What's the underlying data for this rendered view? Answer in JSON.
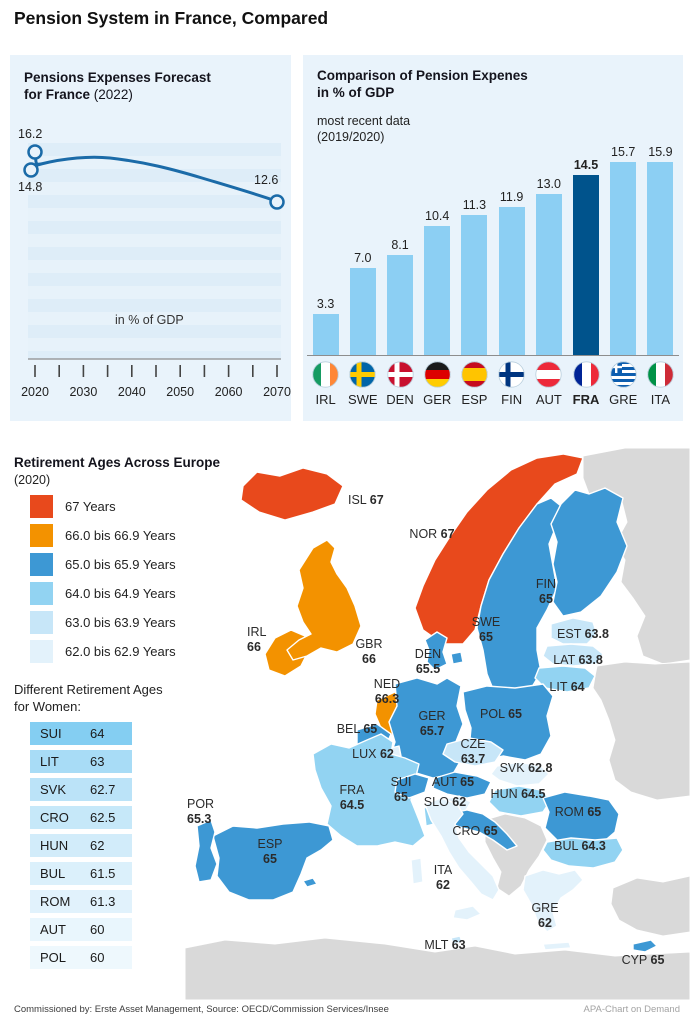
{
  "page_title": "Pension System in France, Compared",
  "colors": {
    "panel_bg": "#e9f3fb",
    "line": "#1b6ba8",
    "bar_light": "#8ccff3",
    "bar_dark": "#00538c",
    "map_nodata": "#d9d9d9",
    "bands": {
      "67": "#e8491c",
      "66": "#f39200",
      "65": "#3d98d4",
      "64": "#92d3f2",
      "63": "#c7e6f8",
      "62": "#e3f2fb"
    },
    "table_row_bgs": [
      "#84cef2",
      "#a8dcf6",
      "#bbe3f8",
      "#c6e8f9",
      "#d2ecfa",
      "#dbf0fb",
      "#e1f2fc",
      "#e9f6fd",
      "#eef8fd"
    ]
  },
  "forecast": {
    "title_line1": "Pensions Expenses Forecast",
    "title_line2_bold": "for France",
    "title_line2_year": "(2022)",
    "unit_label": "in % of GDP",
    "label_start_high": "16.2",
    "label_start_low": "14.8",
    "label_end": "12.6",
    "x_tick_labels": [
      "2020",
      "2030",
      "2040",
      "2050",
      "2060",
      "2070"
    ]
  },
  "comparison": {
    "title_line1": "Comparison of Pension Expenes",
    "title_line2": "in % of GDP",
    "subtitle_line1": "most recent data",
    "subtitle_line2": "(2019/2020)"
  },
  "map_section": {
    "title": "Retirement Ages Across Europe",
    "subtitle": "(2020)",
    "legend": [
      {
        "label": "67 Years",
        "band": "67"
      },
      {
        "label": "66.0 bis 66.9 Years",
        "band": "66"
      },
      {
        "label": "65.0 bis 65.9 Years",
        "band": "65"
      },
      {
        "label": "64.0 bis 64.9 Years",
        "band": "64"
      },
      {
        "label": "63.0 bis 63.9 Years",
        "band": "63"
      },
      {
        "label": "62.0 bis 62.9 Years",
        "band": "62"
      }
    ],
    "women_table": {
      "title_line1": "Different Retirement Ages",
      "title_line2": "for Women:",
      "rows": [
        {
          "code": "SUI",
          "value": "64"
        },
        {
          "code": "LIT",
          "value": "63"
        },
        {
          "code": "SVK",
          "value": "62.7"
        },
        {
          "code": "CRO",
          "value": "62.5"
        },
        {
          "code": "HUN",
          "value": "62"
        },
        {
          "code": "BUL",
          "value": "61.5"
        },
        {
          "code": "ROM",
          "value": "61.3"
        },
        {
          "code": "AUT",
          "value": "60"
        },
        {
          "code": "POL",
          "value": "60"
        }
      ]
    }
  },
  "chart_data": [
    {
      "type": "line",
      "title": "Pensions Expenses Forecast for France (2022)",
      "ylabel": "in % of GDP",
      "x_range": [
        2020,
        2070
      ],
      "x_ticks": [
        2020,
        2030,
        2040,
        2050,
        2060,
        2070
      ],
      "labeled_points": [
        {
          "x": 2020,
          "value": 16.2
        },
        {
          "x": 2020,
          "value": 14.8
        },
        {
          "x": 2070,
          "value": 12.6
        }
      ],
      "estimated_series": [
        [
          2020,
          16.2
        ],
        [
          2020,
          14.8
        ],
        [
          2025,
          15.1
        ],
        [
          2032,
          15.3
        ],
        [
          2040,
          14.9
        ],
        [
          2050,
          14.2
        ],
        [
          2060,
          13.4
        ],
        [
          2070,
          12.6
        ]
      ]
    },
    {
      "type": "bar",
      "title": "Comparison of Pension Expenes in % of GDP",
      "subtitle": "most recent data (2019/2020)",
      "categories": [
        "IRL",
        "SWE",
        "DEN",
        "GER",
        "ESP",
        "FIN",
        "AUT",
        "FRA",
        "GRE",
        "ITA"
      ],
      "values": [
        3.3,
        7.0,
        8.1,
        10.4,
        11.3,
        11.9,
        13.0,
        14.5,
        15.7,
        15.9
      ],
      "value_labels": [
        "3.3",
        "7.0",
        "8.1",
        "10.4",
        "11.3",
        "11.9",
        "13.0",
        "14.5",
        "15.7",
        "15.9"
      ],
      "highlight_category": "FRA"
    },
    {
      "type": "choropleth-map",
      "title": "Retirement Ages Across Europe (2020)",
      "unit": "years",
      "countries": [
        {
          "code": "ISL",
          "value": "67",
          "band": "67"
        },
        {
          "code": "NOR",
          "value": "67",
          "band": "67"
        },
        {
          "code": "SWE",
          "value": "65",
          "band": "65"
        },
        {
          "code": "FIN",
          "value": "65",
          "band": "65"
        },
        {
          "code": "IRL",
          "value": "66",
          "band": "66"
        },
        {
          "code": "GBR",
          "value": "66",
          "band": "66"
        },
        {
          "code": "NED",
          "value": "66.3",
          "band": "66"
        },
        {
          "code": "DEN",
          "value": "65.5",
          "band": "65"
        },
        {
          "code": "EST",
          "value": "63.8",
          "band": "63"
        },
        {
          "code": "LAT",
          "value": "63.8",
          "band": "63"
        },
        {
          "code": "LIT",
          "value": "64",
          "band": "64"
        },
        {
          "code": "GER",
          "value": "65.7",
          "band": "65"
        },
        {
          "code": "POL",
          "value": "65",
          "band": "65"
        },
        {
          "code": "BEL",
          "value": "65",
          "band": "65"
        },
        {
          "code": "LUX",
          "value": "62",
          "band": "62"
        },
        {
          "code": "CZE",
          "value": "63.7",
          "band": "63"
        },
        {
          "code": "SVK",
          "value": "62.8",
          "band": "62"
        },
        {
          "code": "FRA",
          "value": "64.5",
          "band": "64"
        },
        {
          "code": "SUI",
          "value": "65",
          "band": "65"
        },
        {
          "code": "AUT",
          "value": "65",
          "band": "65"
        },
        {
          "code": "SLO",
          "value": "62",
          "band": "62"
        },
        {
          "code": "HUN",
          "value": "64.5",
          "band": "64"
        },
        {
          "code": "ROM",
          "value": "65",
          "band": "65"
        },
        {
          "code": "CRO",
          "value": "65",
          "band": "65"
        },
        {
          "code": "BUL",
          "value": "64.3",
          "band": "64"
        },
        {
          "code": "ESP",
          "value": "65",
          "band": "65"
        },
        {
          "code": "POR",
          "value": "65.3",
          "band": "65"
        },
        {
          "code": "ITA",
          "value": "62",
          "band": "62"
        },
        {
          "code": "GRE",
          "value": "62",
          "band": "62"
        },
        {
          "code": "MLT",
          "value": "63",
          "band": "63"
        },
        {
          "code": "CYP",
          "value": "65",
          "band": "65"
        }
      ]
    }
  ],
  "footer": {
    "left": "Commissioned by: Erste Asset Management, Source: OECD/Commission Services/Insee",
    "right": "APA-Chart on Demand"
  }
}
